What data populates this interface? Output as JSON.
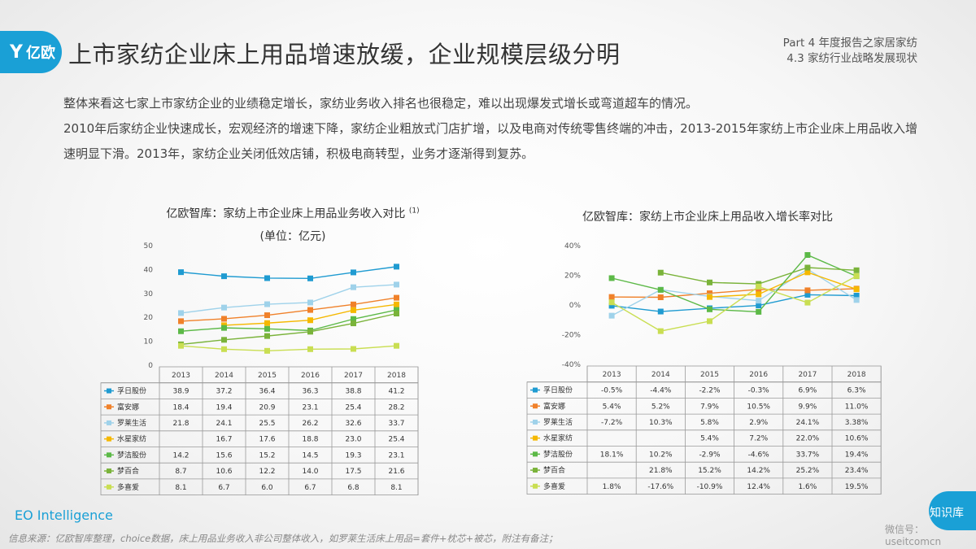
{
  "header": {
    "logo_text": "亿欧",
    "title": "上市家纺企业床上用品增速放缓，企业规模层级分明",
    "part_line1": "Part 4 年度报告之家居家纺",
    "part_line2": "4.3 家纺行业战略发展现状"
  },
  "intro": {
    "p1": "整体来看这七家上市家纺企业的业绩稳定增长，家纺业务收入排名也很稳定，难以出现爆发式增长或弯道超车的情况。",
    "p2": "2010年后家纺企业快速成长，宏观经济的增速下降，家纺企业粗放式门店扩增，以及电商对传统零售终端的冲击，2013-2015年家纺上市企业床上用品收入增速明显下滑。2013年，家纺企业关闭低效店铺，积极电商转型，业务才逐渐得到复苏。"
  },
  "chart_data": [
    {
      "type": "line",
      "title": "亿欧智库：家纺上市企业床上用品业务收入对比",
      "title_note": "(1)",
      "subtitle": "(单位：亿元)",
      "categories": [
        "2013",
        "2014",
        "2015",
        "2016",
        "2017",
        "2018"
      ],
      "ylim": [
        0,
        50
      ],
      "yticks": [
        "0",
        "10",
        "20",
        "30",
        "40",
        "50"
      ],
      "series": [
        {
          "name": "孚日股份",
          "color": "#1f9bd1",
          "values": [
            38.9,
            37.2,
            36.4,
            36.3,
            38.8,
            41.2
          ],
          "labels": [
            "38.9",
            "37.2",
            "36.4",
            "36.3",
            "38.8",
            "41.2"
          ]
        },
        {
          "name": "富安娜",
          "color": "#f0812a",
          "values": [
            18.4,
            19.4,
            20.9,
            23.1,
            25.4,
            28.2
          ],
          "labels": [
            "18.4",
            "19.4",
            "20.9",
            "23.1",
            "25.4",
            "28.2"
          ]
        },
        {
          "name": "罗莱生活",
          "color": "#9fd2ea",
          "values": [
            21.8,
            24.1,
            25.5,
            26.2,
            32.6,
            33.7
          ],
          "labels": [
            "21.8",
            "24.1",
            "25.5",
            "26.2",
            "32.6",
            "33.7"
          ]
        },
        {
          "name": "水星家纺",
          "color": "#f5b800",
          "values": [
            null,
            16.7,
            17.6,
            18.8,
            23.0,
            25.4
          ],
          "labels": [
            "",
            "16.7",
            "17.6",
            "18.8",
            "23.0",
            "25.4"
          ]
        },
        {
          "name": "梦洁股份",
          "color": "#5cb947",
          "values": [
            14.2,
            15.6,
            15.2,
            14.5,
            19.3,
            23.1
          ],
          "labels": [
            "14.2",
            "15.6",
            "15.2",
            "14.5",
            "19.3",
            "23.1"
          ]
        },
        {
          "name": "梦百合",
          "color": "#7ab33a",
          "values": [
            8.7,
            10.6,
            12.2,
            14.0,
            17.5,
            21.6
          ],
          "labels": [
            "8.7",
            "10.6",
            "12.2",
            "14.0",
            "17.5",
            "21.6"
          ]
        },
        {
          "name": "多喜爱",
          "color": "#c9de52",
          "values": [
            8.1,
            6.7,
            6.0,
            6.7,
            6.8,
            8.1
          ],
          "labels": [
            "8.1",
            "6.7",
            "6.0",
            "6.7",
            "6.8",
            "8.1"
          ]
        }
      ]
    },
    {
      "type": "line",
      "title": "亿欧智库：家纺上市企业床上用品收入增长率对比",
      "categories": [
        "2013",
        "2014",
        "2015",
        "2016",
        "2017",
        "2018"
      ],
      "ylim": [
        -40,
        40
      ],
      "yticks": [
        "-40%",
        "-20%",
        "0%",
        "20%",
        "40%"
      ],
      "series": [
        {
          "name": "孚日股份",
          "color": "#1f9bd1",
          "values": [
            -0.5,
            -4.4,
            -2.2,
            -0.3,
            6.9,
            6.3
          ],
          "labels": [
            "-0.5%",
            "-4.4%",
            "-2.2%",
            "-0.3%",
            "6.9%",
            "6.3%"
          ]
        },
        {
          "name": "富安娜",
          "color": "#f0812a",
          "values": [
            5.4,
            5.2,
            7.9,
            10.5,
            9.9,
            11.0
          ],
          "labels": [
            "5.4%",
            "5.2%",
            "7.9%",
            "10.5%",
            "9.9%",
            "11.0%"
          ]
        },
        {
          "name": "罗莱生活",
          "color": "#9fd2ea",
          "values": [
            -7.2,
            10.3,
            5.8,
            2.9,
            24.1,
            3.38
          ],
          "labels": [
            "-7.2%",
            "10.3%",
            "5.8%",
            "2.9%",
            "24.1%",
            "3.38%"
          ]
        },
        {
          "name": "水星家纺",
          "color": "#f5b800",
          "values": [
            null,
            null,
            5.4,
            7.2,
            22.0,
            10.6
          ],
          "labels": [
            "",
            "",
            "5.4%",
            "7.2%",
            "22.0%",
            "10.6%"
          ]
        },
        {
          "name": "梦洁股份",
          "color": "#5cb947",
          "values": [
            18.1,
            10.2,
            -2.9,
            -4.6,
            33.7,
            19.4
          ],
          "labels": [
            "18.1%",
            "10.2%",
            "-2.9%",
            "-4.6%",
            "33.7%",
            "19.4%"
          ]
        },
        {
          "name": "梦百合",
          "color": "#7ab33a",
          "values": [
            null,
            21.8,
            15.2,
            14.2,
            25.2,
            23.4
          ],
          "labels": [
            "",
            "21.8%",
            "15.2%",
            "14.2%",
            "25.2%",
            "23.4%"
          ]
        },
        {
          "name": "多喜爱",
          "color": "#c9de52",
          "values": [
            1.8,
            -17.6,
            -10.9,
            12.4,
            1.6,
            19.5
          ],
          "labels": [
            "1.8%",
            "-17.6%",
            "-10.9%",
            "12.4%",
            "1.6%",
            "19.5%"
          ]
        }
      ]
    }
  ],
  "footer": {
    "brand": "EO Intelligence",
    "source": "信息来源：亿欧智库整理，choice数据，床上用品业务收入非公司整体收入，如罗莱生活床上用品=套件+枕芯+被芯，附注有备注；",
    "watermark_top": "知识库",
    "watermark_bottom": "微信号：useitcomcn"
  }
}
